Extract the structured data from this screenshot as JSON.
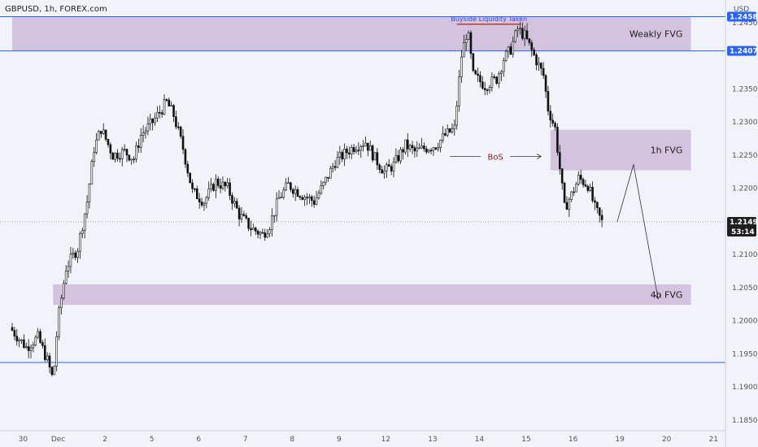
{
  "header": {
    "title": "GBPUSD, 1h, FOREX.com",
    "currency": "USD"
  },
  "colors": {
    "background": "#f0f3fa",
    "zone": "#c9b3d6",
    "level_line": "#2962ff",
    "candle": "#111111",
    "badge": "#1f1f1f",
    "bos": "#8b1b1b",
    "liquidity_line": "#c0392b"
  },
  "chart_data": {
    "type": "candlestick",
    "symbol": "GBPUSD",
    "timeframe": "1h",
    "ylim": [
      1.185,
      1.25
    ],
    "y_ticks": [
      "1.24500",
      "1.23500",
      "1.23000",
      "1.22500",
      "1.22000",
      "1.21000",
      "1.20500",
      "1.20000",
      "1.19500",
      "1.19000",
      "1.18500"
    ],
    "x_ticks": [
      {
        "label": "30",
        "t": 0.5
      },
      {
        "label": "Dec",
        "t": 2.0
      },
      {
        "label": "2",
        "t": 4.0
      },
      {
        "label": "5",
        "t": 6.0
      },
      {
        "label": "6",
        "t": 8.0
      },
      {
        "label": "7",
        "t": 10.0
      },
      {
        "label": "8",
        "t": 12.0
      },
      {
        "label": "9",
        "t": 14.0
      },
      {
        "label": "12",
        "t": 16.0
      },
      {
        "label": "13",
        "t": 18.0
      },
      {
        "label": "14",
        "t": 20.0
      },
      {
        "label": "15",
        "t": 22.0
      },
      {
        "label": "16",
        "t": 24.0
      },
      {
        "label": "19",
        "t": 26.0
      },
      {
        "label": "20",
        "t": 28.0
      },
      {
        "label": "21",
        "t": 30.0
      }
    ],
    "price_labels": [
      {
        "text": "1.24589",
        "value": 1.24589
      },
      {
        "text": "1.24073",
        "value": 1.24073
      },
      {
        "text": "1.21493",
        "value": 1.21493
      }
    ],
    "countdown": "53:14",
    "current_price": 1.21493,
    "horizontal_levels": [
      1.24589,
      1.24073,
      1.1937
    ],
    "zones": [
      {
        "label": "Weakly FVG",
        "t0": 0.0,
        "t1": 29.0,
        "y_low": 1.24073,
        "y_high": 1.24589
      },
      {
        "label": "1h FVG",
        "t0": 23.0,
        "t1": 29.0,
        "y_low": 1.2227,
        "y_high": 1.2288
      },
      {
        "label": "4h FVG",
        "t0": 1.75,
        "t1": 29.0,
        "y_low": 1.2024,
        "y_high": 1.2055
      }
    ],
    "annotations": {
      "liquidity": {
        "text": "Buyside Liquidity Taken",
        "t0": 19.0,
        "t1": 21.75,
        "y": 1.24475
      },
      "bos": {
        "text": "BoS",
        "t0": 18.7,
        "t1": 22.6,
        "y": 1.2248
      },
      "projection": [
        {
          "t": 25.85,
          "y": 1.2149
        },
        {
          "t": 26.55,
          "y": 1.2236
        },
        {
          "t": 27.6,
          "y": 1.2033
        }
      ]
    },
    "path": [
      [
        0.0,
        1.199
      ],
      [
        0.7,
        1.196
      ],
      [
        1.2,
        1.1975
      ],
      [
        1.6,
        1.194
      ],
      [
        1.85,
        1.191
      ],
      [
        2.05,
        1.2
      ],
      [
        2.4,
        1.208
      ],
      [
        2.9,
        1.211
      ],
      [
        3.3,
        1.218
      ],
      [
        3.6,
        1.226
      ],
      [
        3.9,
        1.229
      ],
      [
        4.4,
        1.225
      ],
      [
        4.9,
        1.2255
      ],
      [
        5.3,
        1.2245
      ],
      [
        5.6,
        1.228
      ],
      [
        6.1,
        1.23
      ],
      [
        6.7,
        1.233
      ],
      [
        7.0,
        1.231
      ],
      [
        7.4,
        1.226
      ],
      [
        7.8,
        1.2195
      ],
      [
        8.3,
        1.218
      ],
      [
        8.8,
        1.221
      ],
      [
        9.3,
        1.22
      ],
      [
        9.8,
        1.216
      ],
      [
        10.3,
        1.214
      ],
      [
        10.8,
        1.213
      ],
      [
        11.1,
        1.2145
      ],
      [
        11.5,
        1.2185
      ],
      [
        11.9,
        1.2205
      ],
      [
        12.5,
        1.219
      ],
      [
        13.0,
        1.218
      ],
      [
        13.4,
        1.2205
      ],
      [
        13.9,
        1.224
      ],
      [
        14.4,
        1.2255
      ],
      [
        14.8,
        1.2265
      ],
      [
        15.2,
        1.227
      ],
      [
        15.6,
        1.2245
      ],
      [
        16.0,
        1.2225
      ],
      [
        16.4,
        1.2235
      ],
      [
        16.9,
        1.2265
      ],
      [
        17.3,
        1.2255
      ],
      [
        17.7,
        1.226
      ],
      [
        18.2,
        1.2265
      ],
      [
        18.6,
        1.228
      ],
      [
        19.0,
        1.229
      ],
      [
        19.3,
        1.24
      ],
      [
        19.55,
        1.244
      ],
      [
        19.8,
        1.237
      ],
      [
        20.3,
        1.2355
      ],
      [
        20.8,
        1.2365
      ],
      [
        21.1,
        1.2395
      ],
      [
        21.4,
        1.241
      ],
      [
        21.7,
        1.244
      ],
      [
        22.0,
        1.243
      ],
      [
        22.4,
        1.24
      ],
      [
        22.8,
        1.237
      ],
      [
        23.0,
        1.232
      ],
      [
        23.3,
        1.229
      ],
      [
        23.5,
        1.223
      ],
      [
        23.7,
        1.217
      ],
      [
        24.0,
        1.219
      ],
      [
        24.3,
        1.2215
      ],
      [
        24.7,
        1.2205
      ],
      [
        25.0,
        1.217
      ],
      [
        25.3,
        1.2149
      ]
    ]
  }
}
